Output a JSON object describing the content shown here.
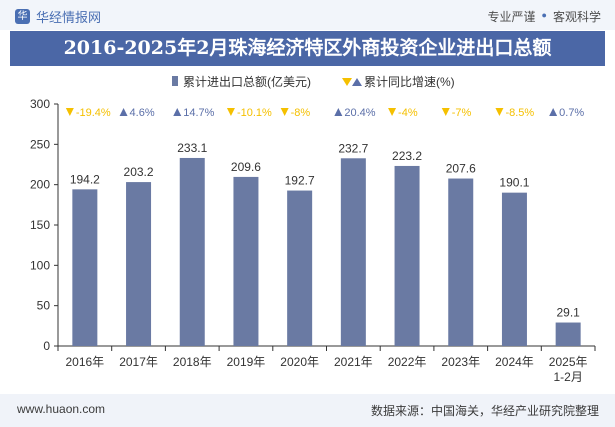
{
  "header": {
    "brand": "华经情报网",
    "tag1": "专业严谨",
    "tag2": "客观科学"
  },
  "footer": {
    "url": "www.huaon.com",
    "source": "数据来源：中国海关，华经产业研究院整理"
  },
  "colors": {
    "bar": "#6a7aa3",
    "down": "#f5c000",
    "up": "#5b6fa8",
    "title_bg": "#4b67a6"
  },
  "chart_data": {
    "type": "bar",
    "title": "2016-2025年2月珠海经济特区外商投资企业进出口总额",
    "categories": [
      "2016年",
      "2017年",
      "2018年",
      "2019年",
      "2020年",
      "2021年",
      "2022年",
      "2023年",
      "2024年",
      "2025年1-2月"
    ],
    "category_lines": [
      [
        "2016年"
      ],
      [
        "2017年"
      ],
      [
        "2018年"
      ],
      [
        "2019年"
      ],
      [
        "2020年"
      ],
      [
        "2021年"
      ],
      [
        "2022年"
      ],
      [
        "2023年"
      ],
      [
        "2024年"
      ],
      [
        "2025年",
        "1-2月"
      ]
    ],
    "series": [
      {
        "name": "累计进出口总额(亿美元)",
        "values": [
          194.2,
          203.2,
          233.1,
          209.6,
          192.7,
          232.7,
          223.2,
          207.6,
          190.1,
          29.1
        ]
      },
      {
        "name": "累计同比增速(%)",
        "values": [
          -19.4,
          4.6,
          14.7,
          -10.1,
          -8,
          20.4,
          -4,
          -7,
          -8.5,
          0.7
        ],
        "labels": [
          "-19.4%",
          "4.6%",
          "14.7%",
          "-10.1%",
          "-8%",
          "20.4%",
          "-4%",
          "-7%",
          "-8.5%",
          "0.7%"
        ]
      }
    ],
    "value_labels": [
      "194.2",
      "203.2",
      "233.1",
      "209.6",
      "192.7",
      "232.7",
      "223.2",
      "207.6",
      "190.1",
      "29.1"
    ],
    "ylim": [
      0,
      300
    ],
    "yticks": [
      "0",
      "50",
      "100",
      "150",
      "200",
      "250",
      "300"
    ],
    "ytick_values": [
      0,
      50,
      100,
      150,
      200,
      250,
      300
    ],
    "legend_position": "top",
    "grid": false
  }
}
